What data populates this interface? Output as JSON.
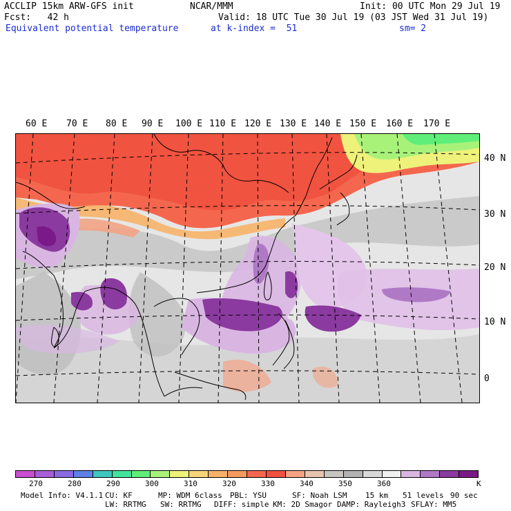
{
  "header": {
    "left_line1": "ACCLIP 15km ARW-GFS init",
    "center_line1": "NCAR/MMM",
    "right_line1": "Init: 00 UTC Mon 29 Jul 19",
    "left_line2": "Fcst:   42 h",
    "right_line2": "Valid: 18 UTC Tue 30 Jul 19 (03 JST Wed 31 Jul 19)",
    "field_name": "Equivalent potential temperature",
    "level": "at k-index =  51",
    "smoothing": "sm= 2"
  },
  "map": {
    "lon_labels": [
      "60 E",
      "70 E",
      "80 E",
      "90 E",
      "100 E",
      "110 E",
      "120 E",
      "130 E",
      "140 E",
      "150 E",
      "160 E",
      "170 E"
    ],
    "lat_labels": [
      "40 N",
      "30 N",
      "20 N",
      "10 N",
      "0"
    ]
  },
  "colorbar": {
    "colors": [
      "#c84fd0",
      "#a85ed6",
      "#8a6ae0",
      "#5f80e6",
      "#3fc6c0",
      "#44e39c",
      "#5fee7a",
      "#a8f27a",
      "#eef27a",
      "#f6d47a",
      "#f7b268",
      "#f59a5e",
      "#f4674e",
      "#f0513f",
      "#f3a384",
      "#e8c4b0",
      "#c8c4c0",
      "#b2b2b2",
      "#d8d8d8",
      "#f0f0f0",
      "#d9b6e2",
      "#b079c6",
      "#8b3a9f",
      "#7a1a88"
    ],
    "ticks": [
      "270",
      "280",
      "290",
      "300",
      "310",
      "320",
      "330",
      "340",
      "350",
      "360"
    ],
    "unit": "K"
  },
  "footer": {
    "line1": [
      "Model Info: V4.1.1",
      "CU: KF",
      "MP: WDM 6class",
      "PBL: YSU",
      "SF: Noah LSM",
      "15 km",
      "51 levels",
      "90 sec"
    ],
    "line2": [
      "LW: RRTMG",
      "SW: RRTMG",
      "DIFF: simple",
      "KM: 2D Smagor",
      "DAMP: Rayleigh3",
      "SFLAY: MM5"
    ]
  }
}
